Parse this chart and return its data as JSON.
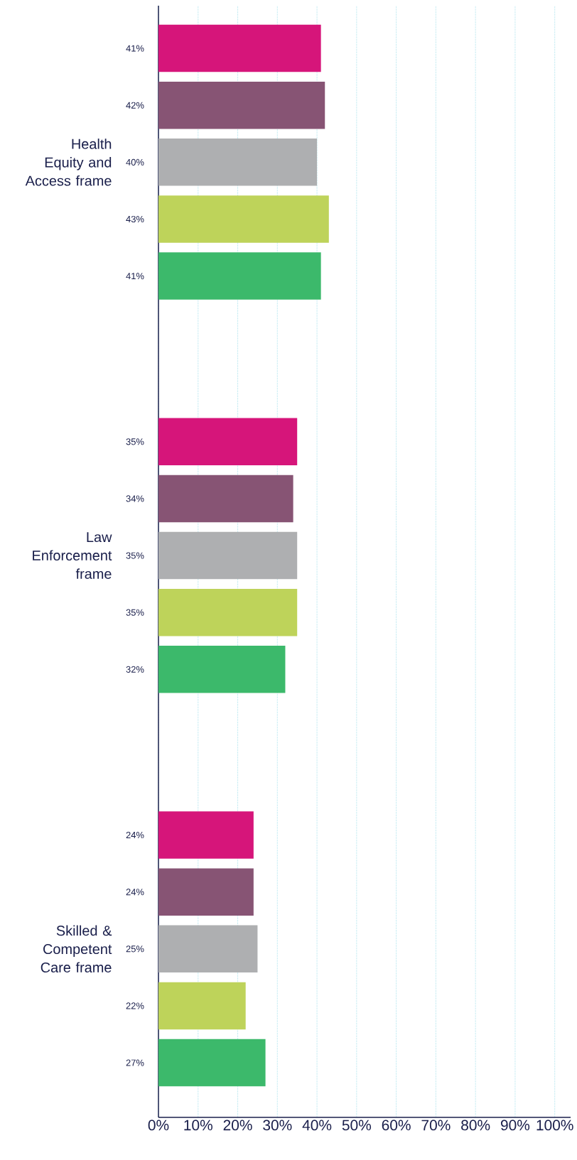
{
  "chart_data": {
    "type": "bar",
    "orientation": "horizontal",
    "categories": [
      "Health Equity and Access frame",
      "Law Enforcement frame",
      "Skilled & Competent Care frame"
    ],
    "series": [
      {
        "color": "#d6157a",
        "values": [
          41,
          35,
          24
        ],
        "value_labels": [
          "41%",
          "35%",
          "24%"
        ]
      },
      {
        "color": "#875474",
        "values": [
          42,
          34,
          24
        ],
        "value_labels": [
          "42%",
          "34%",
          "24%"
        ]
      },
      {
        "color": "#aeafb1",
        "values": [
          40,
          35,
          25
        ],
        "value_labels": [
          "40%",
          "35%",
          "25%"
        ]
      },
      {
        "color": "#bed35a",
        "values": [
          43,
          35,
          22
        ],
        "value_labels": [
          "43%",
          "35%",
          "22%"
        ]
      },
      {
        "color": "#3cb96b",
        "values": [
          41,
          32,
          27
        ],
        "value_labels": [
          "41%",
          "32%",
          "27%"
        ]
      }
    ],
    "xlim": [
      0,
      104
    ],
    "xticks": [
      {
        "value": 0,
        "label": "0%"
      },
      {
        "value": 10,
        "label": "10%"
      },
      {
        "value": 20,
        "label": "20%"
      },
      {
        "value": 30,
        "label": "30%"
      },
      {
        "value": 40,
        "label": "40%"
      },
      {
        "value": 50,
        "label": "50%"
      },
      {
        "value": 60,
        "label": "60%"
      },
      {
        "value": 70,
        "label": "70%"
      },
      {
        "value": 80,
        "label": "80%"
      },
      {
        "value": 90,
        "label": "90%"
      },
      {
        "value": 100,
        "label": "100%"
      }
    ],
    "grid": "x"
  }
}
